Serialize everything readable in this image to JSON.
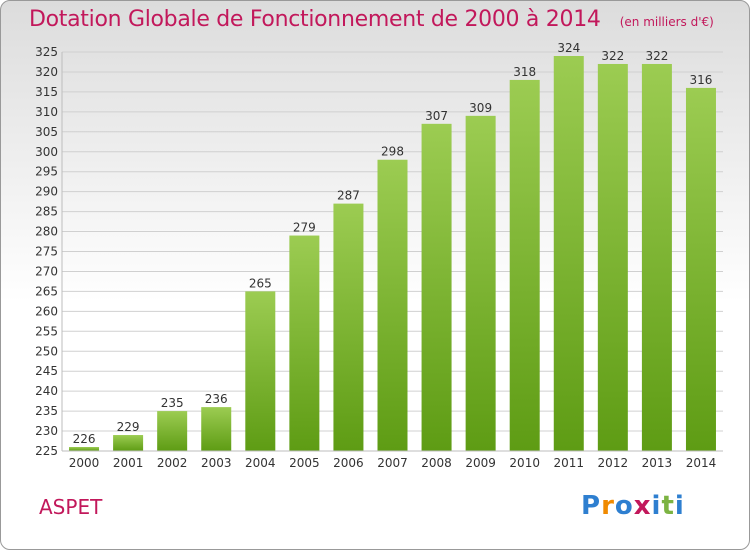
{
  "chart_data": {
    "type": "bar",
    "title": "Dotation Globale de Fonctionnement de 2000 à 2014",
    "subtitle": "(en milliers d'€)",
    "categories": [
      "2000",
      "2001",
      "2002",
      "2003",
      "2004",
      "2005",
      "2006",
      "2007",
      "2008",
      "2009",
      "2010",
      "2011",
      "2012",
      "2013",
      "2014"
    ],
    "values": [
      226,
      229,
      235,
      236,
      265,
      279,
      287,
      298,
      307,
      309,
      318,
      324,
      322,
      322,
      316
    ],
    "ylim": [
      225,
      325
    ],
    "ytick_step": 5,
    "grid": true,
    "bar_color_top": "#9ccc52",
    "bar_color_bottom": "#5e9c14"
  },
  "footer": {
    "place": "ASPET",
    "brand": [
      "P",
      "r",
      "o",
      "x",
      "i",
      "t",
      "i"
    ],
    "brand_colors": [
      "#2e7fd0",
      "#f08a00",
      "#2e7fd0",
      "#c2185b",
      "#2e7fd0",
      "#7cb342",
      "#2e7fd0"
    ]
  }
}
